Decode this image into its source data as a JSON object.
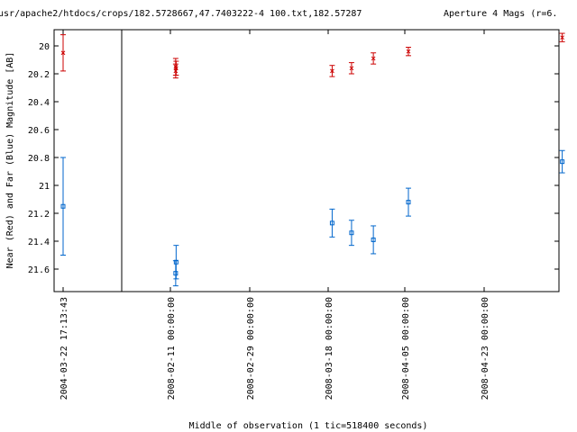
{
  "chart_data": {
    "type": "scatter",
    "title_left": "/usr/apache2/htdocs/crops/182.5728667,47.7403222-4 100.txt,182.57287",
    "title_right": "Aperture 4 Mags (r=6.",
    "xlabel": "Middle of observation (1 tic=518400 seconds)",
    "ylabel": "Near (Red) and Far (Blue) Magnitude [AB]",
    "y_reversed": true,
    "ylim": [
      19.9,
      21.75
    ],
    "y_ticks": [
      "20",
      "20.2",
      "20.4",
      "20.6",
      "20.8",
      "21",
      "21.2",
      "21.4",
      "21.6"
    ],
    "x_ticks": [
      "2004-03-22 17:13:43",
      "2008-02-11 00:00:00",
      "2008-02-29 00:00:00",
      "2008-03-18 00:00:00",
      "2008-04-05 00:00:00",
      "2008-04-23 00:00:00"
    ],
    "axis_break_after_first_tick": true,
    "series": [
      {
        "color": "#cc0000",
        "marker": "x",
        "points": [
          {
            "x": "2004-03-22 17:13:43",
            "y": 20.05,
            "err": 0.13
          },
          {
            "x": "2008-02-12 04:48:00",
            "y": 20.15,
            "err": 0.06
          },
          {
            "x": "2008-02-12 04:48:00",
            "y": 20.18,
            "err": 0.05
          },
          {
            "x": "2008-02-12 07:12:00",
            "y": 20.16,
            "err": 0.05
          },
          {
            "x": "2008-03-18 16:48:00",
            "y": 20.18,
            "err": 0.04
          },
          {
            "x": "2008-03-23 02:24:00",
            "y": 20.16,
            "err": 0.04
          },
          {
            "x": "2008-03-28 01:12:00",
            "y": 20.09,
            "err": 0.04
          },
          {
            "x": "2008-04-05 00:00:00",
            "y": 20.04,
            "err": 0.03
          },
          {
            "x": "2008-05-09 21:36:00",
            "y": 19.94,
            "err": 0.03
          }
        ]
      },
      {
        "color": "#0066cc",
        "marker": "square",
        "points": [
          {
            "x": "2004-03-22 17:13:43",
            "y": 21.15,
            "err": 0.35
          },
          {
            "x": "2008-02-12 04:48:00",
            "y": 21.63,
            "err": 0.09
          },
          {
            "x": "2008-02-12 07:12:00",
            "y": 21.55,
            "err": 0.12
          },
          {
            "x": "2008-03-18 16:48:00",
            "y": 21.27,
            "err": 0.1
          },
          {
            "x": "2008-03-23 02:24:00",
            "y": 21.34,
            "err": 0.09
          },
          {
            "x": "2008-03-28 01:12:00",
            "y": 21.39,
            "err": 0.1
          },
          {
            "x": "2008-04-05 00:00:00",
            "y": 21.12,
            "err": 0.1
          },
          {
            "x": "2008-05-09 21:36:00",
            "y": 20.83,
            "err": 0.08
          }
        ]
      }
    ]
  }
}
